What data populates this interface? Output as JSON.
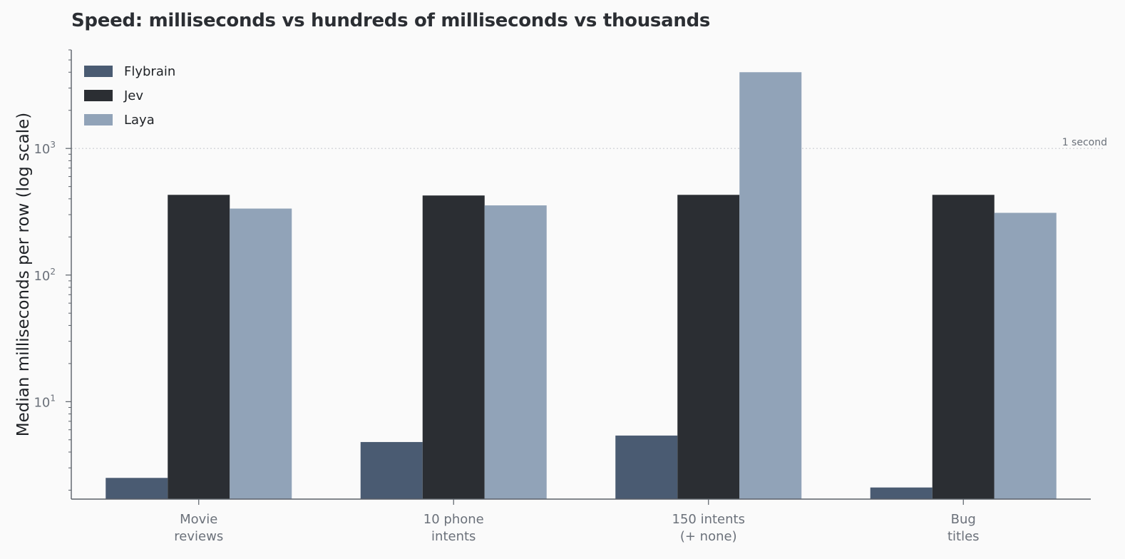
{
  "chart_data": {
    "type": "bar",
    "title": "Speed: milliseconds vs hundreds of milliseconds vs thousands",
    "xlabel": "",
    "ylabel": "Median milliseconds per row (log scale)",
    "yscale": "log",
    "ylim": [
      1.7,
      6000
    ],
    "yticks": [
      {
        "base": "10",
        "exp": "1",
        "value": 10
      },
      {
        "base": "10",
        "exp": "2",
        "value": 100
      },
      {
        "base": "10",
        "exp": "3",
        "value": 1000
      }
    ],
    "categories": [
      [
        "Movie",
        "reviews"
      ],
      [
        "10 phone",
        "intents"
      ],
      [
        "150 intents",
        "(+ none)"
      ],
      [
        "Bug",
        "titles"
      ]
    ],
    "series": [
      {
        "name": "Flybrain",
        "color": "#4a5b72",
        "values": [
          2.5,
          4.8,
          5.4,
          2.1
        ]
      },
      {
        "name": "Jev",
        "color": "#2b2e33",
        "values": [
          430,
          425,
          430,
          430
        ]
      },
      {
        "name": "Laya",
        "color": "#91a3b8",
        "values": [
          335,
          355,
          4000,
          310
        ]
      }
    ],
    "reference_line": {
      "value": 1000,
      "label": "1 second",
      "style": "dotted"
    },
    "legend_position": "top-left",
    "grid": false
  }
}
